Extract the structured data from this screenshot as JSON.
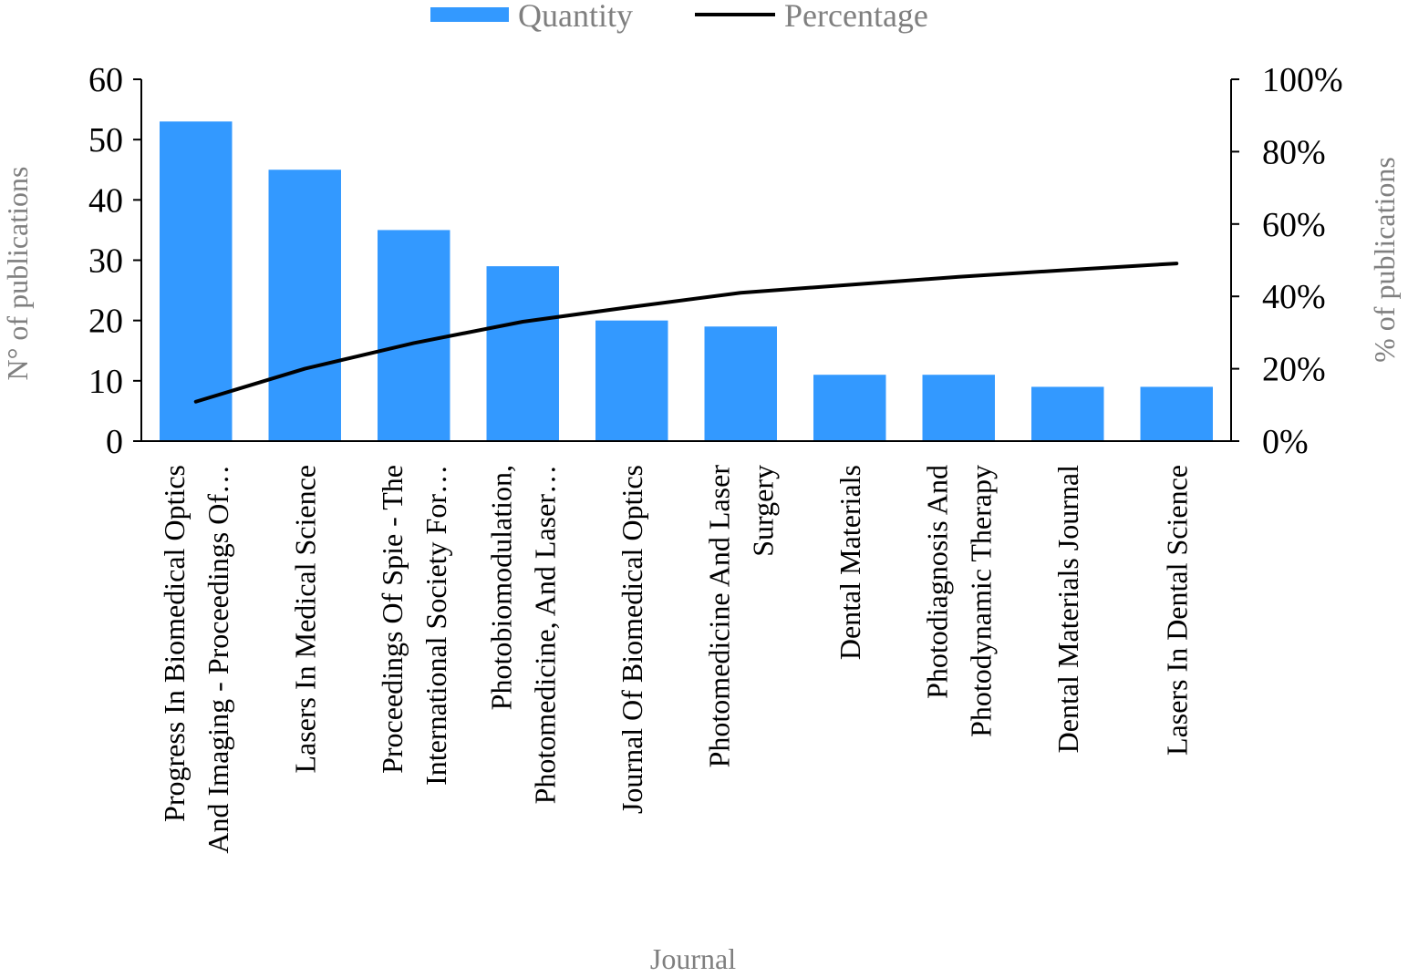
{
  "chart_data": {
    "type": "bar",
    "categories": [
      [
        "Progress In Biomedical Optics",
        "And Imaging - Proceedings Of…"
      ],
      [
        "Lasers In Medical Science"
      ],
      [
        "Proceedings Of Spie - The",
        "International Society For…"
      ],
      [
        "Photobiomodulation,",
        "Photomedicine, And Laser…"
      ],
      [
        "Journal Of Biomedical Optics"
      ],
      [
        "Photomedicine And Laser",
        "Surgery"
      ],
      [
        "Dental Materials"
      ],
      [
        "Photodiagnosis And",
        "Photodynamic Therapy"
      ],
      [
        "Dental Materials Journal"
      ],
      [
        "Lasers In Dental Science"
      ]
    ],
    "series": [
      {
        "name": "Quantity",
        "type": "bar",
        "axis": "left",
        "color": "#3399ff",
        "values": [
          53,
          45,
          35,
          29,
          20,
          19,
          11,
          11,
          9,
          9
        ]
      },
      {
        "name": "Percentage",
        "type": "line",
        "axis": "right",
        "color": "#000000",
        "values": [
          10.9,
          20.0,
          27.1,
          33.0,
          37.1,
          41.0,
          43.2,
          45.4,
          47.3,
          49.1
        ]
      }
    ],
    "xlabel": "Journal",
    "ylabel": "N° of publications",
    "y2label": "% of publications",
    "ylim": [
      0,
      60
    ],
    "y2lim": [
      0,
      100
    ],
    "yticks": [
      "0",
      "10",
      "20",
      "30",
      "40",
      "50",
      "60"
    ],
    "y2ticks": [
      "0%",
      "20%",
      "40%",
      "60%",
      "80%",
      "100%"
    ],
    "legend_position": "top-center",
    "grid": false
  }
}
